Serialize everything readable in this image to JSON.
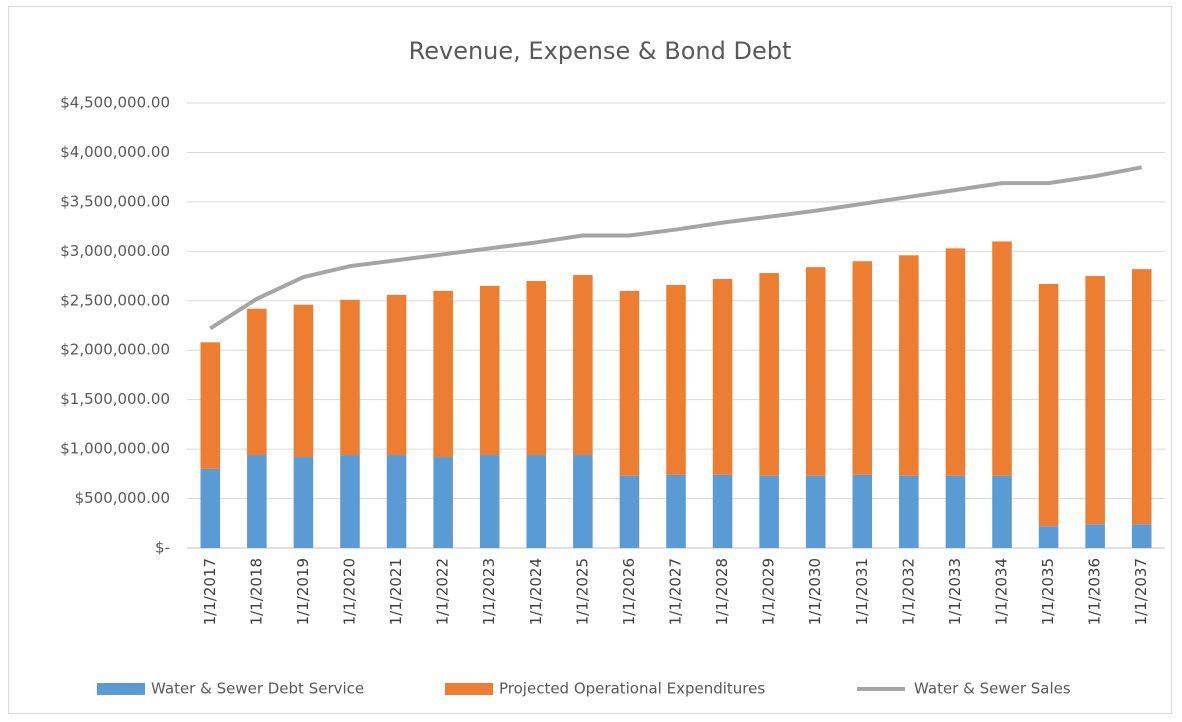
{
  "chart_data": {
    "type": "bar",
    "stacked": true,
    "title": "Revenue, Expense & Bond Debt",
    "categories": [
      "1/1/2017",
      "1/1/2018",
      "1/1/2019",
      "1/1/2020",
      "1/1/2021",
      "1/1/2022",
      "1/1/2023",
      "1/1/2024",
      "1/1/2025",
      "1/1/2026",
      "1/1/2027",
      "1/1/2028",
      "1/1/2029",
      "1/1/2030",
      "1/1/2031",
      "1/1/2032",
      "1/1/2033",
      "1/1/2034",
      "1/1/2035",
      "1/1/2036",
      "1/1/2037"
    ],
    "series": [
      {
        "name": "Water & Sewer Debt Service",
        "color": "#5b9bd5",
        "type": "bar",
        "values": [
          800000,
          940000,
          920000,
          940000,
          940000,
          920000,
          940000,
          940000,
          940000,
          730000,
          740000,
          740000,
          730000,
          730000,
          740000,
          730000,
          730000,
          730000,
          220000,
          240000,
          240000
        ]
      },
      {
        "name": "Projected Operational Expenditures",
        "color": "#ed7d31",
        "type": "bar",
        "values": [
          1280000,
          1480000,
          1540000,
          1570000,
          1620000,
          1680000,
          1710000,
          1760000,
          1820000,
          1870000,
          1920000,
          1980000,
          2050000,
          2110000,
          2160000,
          2230000,
          2300000,
          2370000,
          2450000,
          2510000,
          2580000
        ]
      },
      {
        "name": "Water & Sewer Sales",
        "color": "#a5a5a5",
        "type": "line",
        "values": [
          2220000,
          2520000,
          2740000,
          2850000,
          2910000,
          2970000,
          3030000,
          3090000,
          3160000,
          3160000,
          3220000,
          3290000,
          3350000,
          3410000,
          3480000,
          3550000,
          3620000,
          3690000,
          3690000,
          3760000,
          3850000
        ]
      }
    ],
    "ylim": [
      0,
      4500000
    ],
    "yticks": [
      {
        "value": 0,
        "label": "$-"
      },
      {
        "value": 500000,
        "label": "$500,000.00"
      },
      {
        "value": 1000000,
        "label": "$1,000,000.00"
      },
      {
        "value": 1500000,
        "label": "$1,500,000.00"
      },
      {
        "value": 2000000,
        "label": "$2,000,000.00"
      },
      {
        "value": 2500000,
        "label": "$2,500,000.00"
      },
      {
        "value": 3000000,
        "label": "$3,000,000.00"
      },
      {
        "value": 3500000,
        "label": "$3,500,000.00"
      },
      {
        "value": 4000000,
        "label": "$4,000,000.00"
      },
      {
        "value": 4500000,
        "label": "$4,500,000.00"
      }
    ],
    "grid": true,
    "legend": "bottom"
  }
}
